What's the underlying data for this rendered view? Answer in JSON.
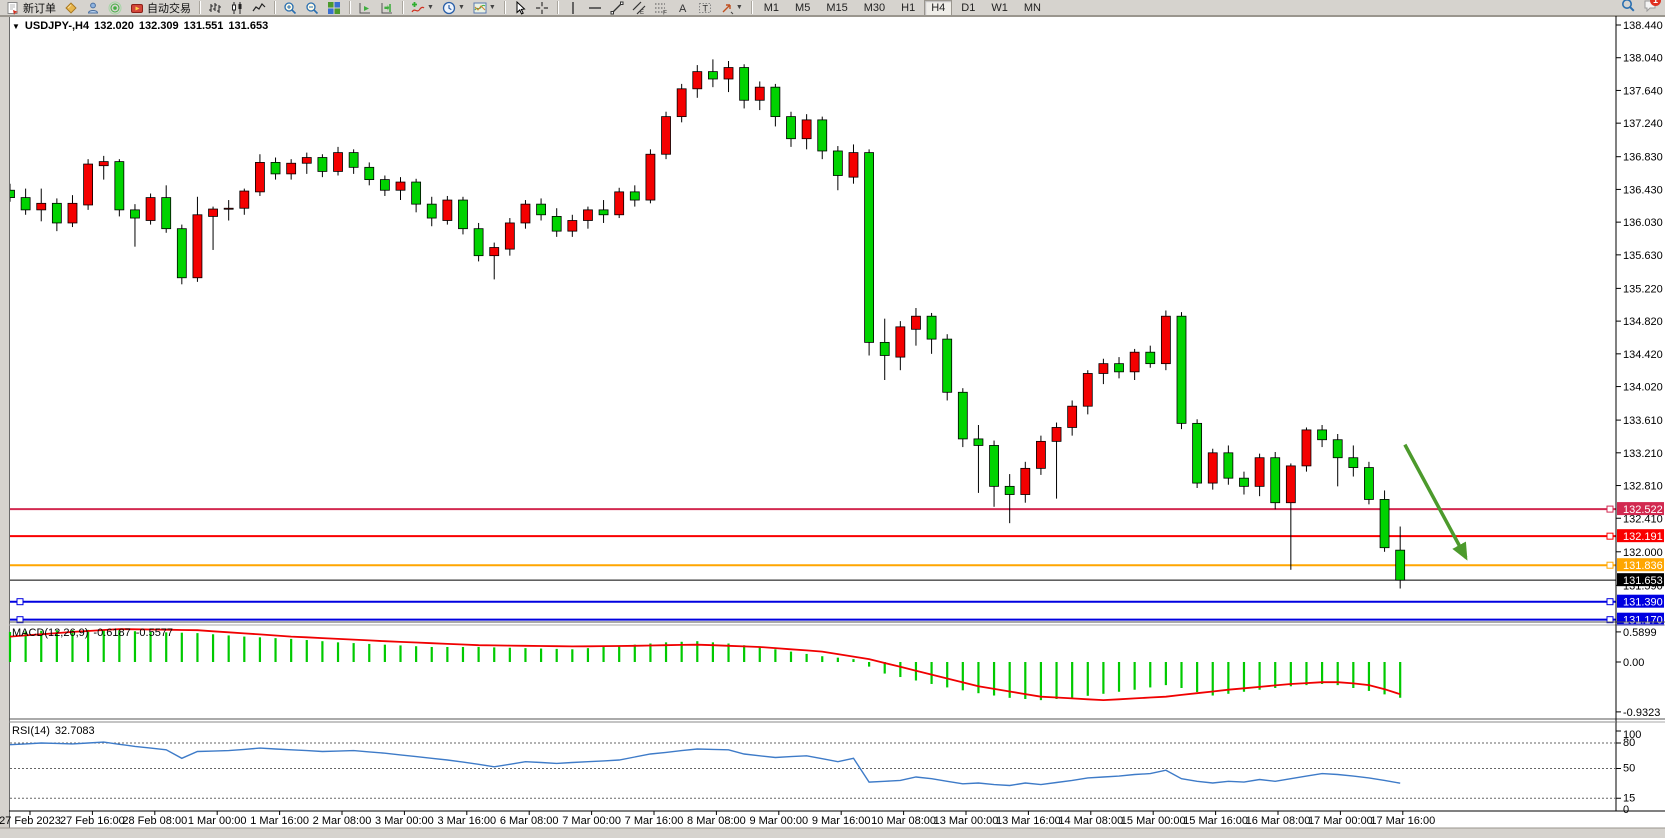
{
  "toolbar": {
    "left_buttons": [
      {
        "name": "new-order",
        "icon": "new-order-icon",
        "label": "新订单"
      },
      {
        "name": "chart-window-open",
        "icon": "gold-box-icon",
        "label": ""
      },
      {
        "name": "profile",
        "icon": "user-icon",
        "label": ""
      },
      {
        "name": "signals",
        "icon": "signal-icon",
        "label": ""
      },
      {
        "name": "auto-trading",
        "icon": "auto-trading-icon",
        "label": "自动交易"
      }
    ],
    "chart_type_buttons": [
      {
        "name": "bar-chart",
        "icon": "bar-chart-icon"
      },
      {
        "name": "candlestick-chart",
        "icon": "candlestick-icon"
      },
      {
        "name": "line-chart",
        "icon": "line-chart-icon"
      }
    ],
    "zoom_buttons": [
      {
        "name": "zoom-in",
        "icon": "zoom-in-icon"
      },
      {
        "name": "zoom-out",
        "icon": "zoom-out-icon"
      },
      {
        "name": "tile-windows",
        "icon": "tile-windows-icon"
      }
    ],
    "scroll_buttons": [
      {
        "name": "auto-scroll",
        "icon": "auto-scroll-icon"
      },
      {
        "name": "chart-shift",
        "icon": "chart-shift-icon"
      }
    ],
    "insert_buttons": [
      {
        "name": "indicators",
        "icon": "indicators-icon",
        "dropdown": true
      },
      {
        "name": "periods",
        "icon": "clock-icon",
        "dropdown": true
      },
      {
        "name": "templates",
        "icon": "template-icon",
        "dropdown": true
      }
    ],
    "cursor_buttons": [
      {
        "name": "cursor",
        "icon": "cursor-icon"
      },
      {
        "name": "crosshair",
        "icon": "crosshair-icon"
      }
    ],
    "draw_buttons": [
      {
        "name": "vertical-line",
        "icon": "vertical-line-icon"
      },
      {
        "name": "horizontal-line",
        "icon": "horizontal-line-icon"
      },
      {
        "name": "trendline",
        "icon": "trendline-icon"
      },
      {
        "name": "equidistant-channel",
        "icon": "channel-icon"
      },
      {
        "name": "fibonacci",
        "icon": "fibonacci-icon"
      },
      {
        "name": "text",
        "icon": "text-icon"
      },
      {
        "name": "text-label",
        "icon": "text-label-icon"
      },
      {
        "name": "arrow-tools",
        "icon": "arrow-tool-icon",
        "dropdown": true
      }
    ],
    "timeframes": [
      "M1",
      "M5",
      "M15",
      "M30",
      "H1",
      "H4",
      "D1",
      "W1",
      "MN"
    ],
    "active_timeframe": "H4",
    "right_buttons": [
      {
        "name": "search",
        "icon": "search-icon"
      },
      {
        "name": "notifications",
        "icon": "chat-icon",
        "badge": "1"
      }
    ]
  },
  "chart": {
    "title": "USDJPY-,H4",
    "open": "132.020",
    "high": "132.309",
    "low": "131.551",
    "close": "131.653",
    "price_axis_ticks": [
      "138.440",
      "138.040",
      "137.640",
      "137.240",
      "136.830",
      "136.430",
      "136.030",
      "135.630",
      "135.220",
      "134.820",
      "134.420",
      "134.020",
      "133.610",
      "133.210",
      "132.810",
      "132.410",
      "132.000",
      "131.590"
    ],
    "hlines": [
      {
        "price": "132.522",
        "value": 132.522,
        "color": "#d22950",
        "handles": "right"
      },
      {
        "price": "132.191",
        "value": 132.191,
        "color": "#fa0000",
        "handles": "right"
      },
      {
        "price": "131.836",
        "value": 131.836,
        "color": "#ffa600",
        "handles": "right"
      },
      {
        "price": "131.653",
        "value": 131.653,
        "color": "#000000",
        "handles": "none"
      },
      {
        "price": "131.390",
        "value": 131.39,
        "color": "#0000e0",
        "handles": "both"
      },
      {
        "price": "131.170",
        "value": 131.17,
        "color": "#0000e0",
        "handles": "both"
      }
    ],
    "time_axis_labels": [
      "27 Feb 2023",
      "27 Feb 16:00",
      "28 Feb 08:00",
      "1 Mar 00:00",
      "1 Mar 16:00",
      "2 Mar 08:00",
      "3 Mar 00:00",
      "3 Mar 16:00",
      "6 Mar 08:00",
      "7 Mar 00:00",
      "7 Mar 16:00",
      "8 Mar 08:00",
      "9 Mar 00:00",
      "9 Mar 16:00",
      "10 Mar 08:00",
      "13 Mar 00:00",
      "13 Mar 16:00",
      "14 Mar 08:00",
      "15 Mar 00:00",
      "15 Mar 16:00",
      "16 Mar 08:00",
      "17 Mar 00:00",
      "17 Mar 16:00"
    ],
    "macd": {
      "label": "MACD(12,26,9)",
      "value": "-0.6187",
      "signal_value": "-0.5577",
      "scale": [
        "0.5899",
        "0.00",
        "-0.9323"
      ]
    },
    "rsi": {
      "label": "RSI(14)",
      "value": "32.7083",
      "scale": [
        "100",
        "80",
        "50",
        "15",
        "0"
      ],
      "levels": [
        80,
        50,
        15
      ]
    }
  },
  "chart_data": {
    "type": "candlestick",
    "symbol": "USDJPY-",
    "period": "H4",
    "ylim": [
      131.0,
      138.44
    ],
    "up_color": "#f40000",
    "down_color": "#00d300",
    "candles": [
      [
        136.42,
        136.5,
        136.28,
        136.33
      ],
      [
        136.33,
        136.44,
        136.12,
        136.18
      ],
      [
        136.18,
        136.44,
        136.04,
        136.26
      ],
      [
        136.26,
        136.32,
        135.92,
        136.02
      ],
      [
        136.02,
        136.36,
        135.97,
        136.26
      ],
      [
        136.24,
        136.8,
        136.18,
        136.74
      ],
      [
        136.72,
        136.84,
        136.55,
        136.77
      ],
      [
        136.77,
        136.8,
        136.1,
        136.18
      ],
      [
        136.18,
        136.25,
        135.73,
        136.08
      ],
      [
        136.05,
        136.38,
        136.0,
        136.33
      ],
      [
        136.33,
        136.48,
        135.9,
        135.95
      ],
      [
        135.95,
        136.0,
        135.27,
        135.35
      ],
      [
        135.35,
        136.34,
        135.3,
        136.12
      ],
      [
        136.1,
        136.22,
        135.69,
        136.19
      ],
      [
        136.19,
        136.3,
        136.05,
        136.2
      ],
      [
        136.2,
        136.44,
        136.12,
        136.41
      ],
      [
        136.4,
        136.86,
        136.35,
        136.76
      ],
      [
        136.76,
        136.82,
        136.55,
        136.62
      ],
      [
        136.62,
        136.8,
        136.55,
        136.75
      ],
      [
        136.75,
        136.88,
        136.62,
        136.82
      ],
      [
        136.82,
        136.86,
        136.58,
        136.65
      ],
      [
        136.65,
        136.95,
        136.6,
        136.88
      ],
      [
        136.88,
        136.92,
        136.62,
        136.7
      ],
      [
        136.7,
        136.76,
        136.48,
        136.55
      ],
      [
        136.55,
        136.6,
        136.35,
        136.42
      ],
      [
        136.42,
        136.58,
        136.3,
        136.52
      ],
      [
        136.52,
        136.56,
        136.15,
        136.25
      ],
      [
        136.25,
        136.34,
        135.98,
        136.08
      ],
      [
        136.05,
        136.35,
        136.0,
        136.3
      ],
      [
        136.3,
        136.34,
        135.88,
        135.95
      ],
      [
        135.95,
        136.02,
        135.55,
        135.62
      ],
      [
        135.62,
        135.78,
        135.33,
        135.72
      ],
      [
        135.7,
        136.08,
        135.62,
        136.02
      ],
      [
        136.02,
        136.3,
        135.95,
        136.25
      ],
      [
        136.25,
        136.32,
        136.05,
        136.12
      ],
      [
        136.1,
        136.2,
        135.85,
        135.92
      ],
      [
        135.92,
        136.12,
        135.85,
        136.05
      ],
      [
        136.05,
        136.22,
        135.95,
        136.18
      ],
      [
        136.18,
        136.3,
        136.02,
        136.12
      ],
      [
        136.12,
        136.45,
        136.08,
        136.4
      ],
      [
        136.4,
        136.48,
        136.22,
        136.3
      ],
      [
        136.3,
        136.92,
        136.26,
        136.86
      ],
      [
        136.86,
        137.38,
        136.8,
        137.32
      ],
      [
        137.32,
        137.72,
        137.25,
        137.66
      ],
      [
        137.66,
        137.95,
        137.55,
        137.87
      ],
      [
        137.87,
        138.02,
        137.68,
        137.78
      ],
      [
        137.78,
        138.0,
        137.62,
        137.92
      ],
      [
        137.92,
        137.96,
        137.42,
        137.52
      ],
      [
        137.52,
        137.75,
        137.4,
        137.68
      ],
      [
        137.68,
        137.72,
        137.2,
        137.32
      ],
      [
        137.32,
        137.38,
        136.95,
        137.05
      ],
      [
        137.05,
        137.35,
        136.92,
        137.28
      ],
      [
        137.28,
        137.32,
        136.8,
        136.9
      ],
      [
        136.9,
        136.96,
        136.42,
        136.6
      ],
      [
        136.58,
        136.98,
        136.5,
        136.88
      ],
      [
        136.88,
        136.92,
        134.4,
        134.56
      ],
      [
        134.56,
        134.85,
        134.1,
        134.4
      ],
      [
        134.38,
        134.82,
        134.22,
        134.75
      ],
      [
        134.72,
        134.98,
        134.52,
        134.88
      ],
      [
        134.88,
        134.92,
        134.42,
        134.6
      ],
      [
        134.6,
        134.66,
        133.85,
        133.95
      ],
      [
        133.95,
        134.0,
        133.28,
        133.38
      ],
      [
        133.38,
        133.55,
        132.72,
        133.3
      ],
      [
        133.3,
        133.36,
        132.55,
        132.8
      ],
      [
        132.8,
        132.95,
        132.35,
        132.7
      ],
      [
        132.7,
        133.1,
        132.6,
        133.02
      ],
      [
        133.02,
        133.42,
        132.94,
        133.35
      ],
      [
        133.35,
        133.58,
        132.65,
        133.52
      ],
      [
        133.52,
        133.85,
        133.42,
        133.78
      ],
      [
        133.78,
        134.22,
        133.68,
        134.18
      ],
      [
        134.18,
        134.36,
        134.05,
        134.3
      ],
      [
        134.3,
        134.38,
        134.12,
        134.2
      ],
      [
        134.2,
        134.48,
        134.1,
        134.44
      ],
      [
        134.44,
        134.52,
        134.25,
        134.3
      ],
      [
        134.3,
        134.95,
        134.22,
        134.88
      ],
      [
        134.88,
        134.93,
        133.5,
        133.57
      ],
      [
        133.57,
        133.62,
        132.78,
        132.84
      ],
      [
        132.84,
        133.26,
        132.76,
        133.21
      ],
      [
        133.21,
        133.3,
        132.82,
        132.9
      ],
      [
        132.9,
        132.98,
        132.7,
        132.8
      ],
      [
        132.8,
        133.2,
        132.68,
        133.15
      ],
      [
        133.15,
        133.22,
        132.52,
        132.6
      ],
      [
        132.6,
        133.08,
        131.78,
        133.05
      ],
      [
        133.05,
        133.52,
        132.98,
        133.49
      ],
      [
        133.49,
        133.55,
        133.28,
        133.37
      ],
      [
        133.37,
        133.44,
        132.8,
        133.15
      ],
      [
        133.15,
        133.3,
        132.92,
        133.03
      ],
      [
        133.03,
        133.1,
        132.58,
        132.64
      ],
      [
        132.64,
        132.75,
        132.0,
        132.05
      ],
      [
        132.02,
        132.309,
        131.551,
        131.653
      ]
    ],
    "macd_histogram": [
      0.52,
      0.53,
      0.54,
      0.55,
      0.553,
      0.556,
      0.56,
      0.547,
      0.533,
      0.52,
      0.513,
      0.507,
      0.5,
      0.48,
      0.46,
      0.44,
      0.427,
      0.413,
      0.4,
      0.38,
      0.36,
      0.34,
      0.327,
      0.313,
      0.3,
      0.287,
      0.273,
      0.26,
      0.26,
      0.26,
      0.26,
      0.253,
      0.247,
      0.24,
      0.233,
      0.227,
      0.22,
      0.24,
      0.26,
      0.28,
      0.3,
      0.32,
      0.34,
      0.35,
      0.36,
      0.34,
      0.32,
      0.29,
      0.26,
      0.22,
      0.18,
      0.14,
      0.1,
      0.075,
      0.05,
      -0.08,
      -0.2,
      -0.26,
      -0.32,
      -0.38,
      -0.44,
      -0.49,
      -0.54,
      -0.58,
      -0.62,
      -0.64,
      -0.66,
      -0.64,
      -0.62,
      -0.585,
      -0.55,
      -0.515,
      -0.48,
      -0.44,
      -0.4,
      -0.45,
      -0.52,
      -0.58,
      -0.55,
      -0.515,
      -0.48,
      -0.45,
      -0.42,
      -0.4,
      -0.38,
      -0.4,
      -0.45,
      -0.5,
      -0.56,
      -0.6187
    ],
    "macd_signal": [
      0.44,
      0.46,
      0.48,
      0.5,
      0.52,
      0.537,
      0.553,
      0.57,
      0.566,
      0.562,
      0.558,
      0.554,
      0.55,
      0.532,
      0.513,
      0.495,
      0.477,
      0.458,
      0.44,
      0.427,
      0.413,
      0.4,
      0.387,
      0.373,
      0.36,
      0.348,
      0.337,
      0.325,
      0.313,
      0.302,
      0.29,
      0.287,
      0.283,
      0.28,
      0.277,
      0.273,
      0.27,
      0.272,
      0.275,
      0.277,
      0.28,
      0.285,
      0.29,
      0.295,
      0.3,
      0.29,
      0.28,
      0.27,
      0.26,
      0.24,
      0.22,
      0.2,
      0.18,
      0.137,
      0.093,
      0.05,
      -0.017,
      -0.083,
      -0.15,
      -0.218,
      -0.285,
      -0.353,
      -0.42,
      -0.465,
      -0.51,
      -0.555,
      -0.6,
      -0.615,
      -0.63,
      -0.645,
      -0.66,
      -0.645,
      -0.63,
      -0.615,
      -0.6,
      -0.57,
      -0.54,
      -0.51,
      -0.48,
      -0.455,
      -0.43,
      -0.405,
      -0.38,
      -0.365,
      -0.35,
      -0.35,
      -0.37,
      -0.4,
      -0.47,
      -0.5577
    ],
    "macd_range": [
      -0.9323,
      0.5899
    ],
    "rsi": [
      78,
      79,
      80,
      79.5,
      79,
      80,
      81,
      78.5,
      76,
      74,
      72,
      62,
      70,
      70.5,
      71,
      72.5,
      74,
      73,
      72,
      71,
      70,
      70.5,
      71,
      69.5,
      68,
      66,
      64,
      62,
      60,
      57.5,
      55,
      52,
      55,
      58,
      57,
      56,
      57,
      58,
      59,
      60,
      63.5,
      67,
      69,
      71,
      73,
      72.5,
      72,
      67,
      65,
      63,
      64,
      65,
      61.5,
      58,
      62,
      34,
      35,
      36,
      40,
      38,
      35,
      32,
      33,
      31,
      30,
      33,
      31,
      33.5,
      36,
      39,
      40,
      41,
      43,
      44,
      48,
      38,
      35,
      33,
      35,
      34,
      37,
      35,
      38,
      41,
      44,
      43,
      41,
      39,
      36,
      32.7
    ],
    "rsi_range": [
      0,
      100
    ],
    "annotation_arrow": {
      "from_bar": 89.3,
      "from_price": 133.31,
      "to_bar": 93.2,
      "to_price": 131.93,
      "color": "#4c9a2c"
    }
  }
}
